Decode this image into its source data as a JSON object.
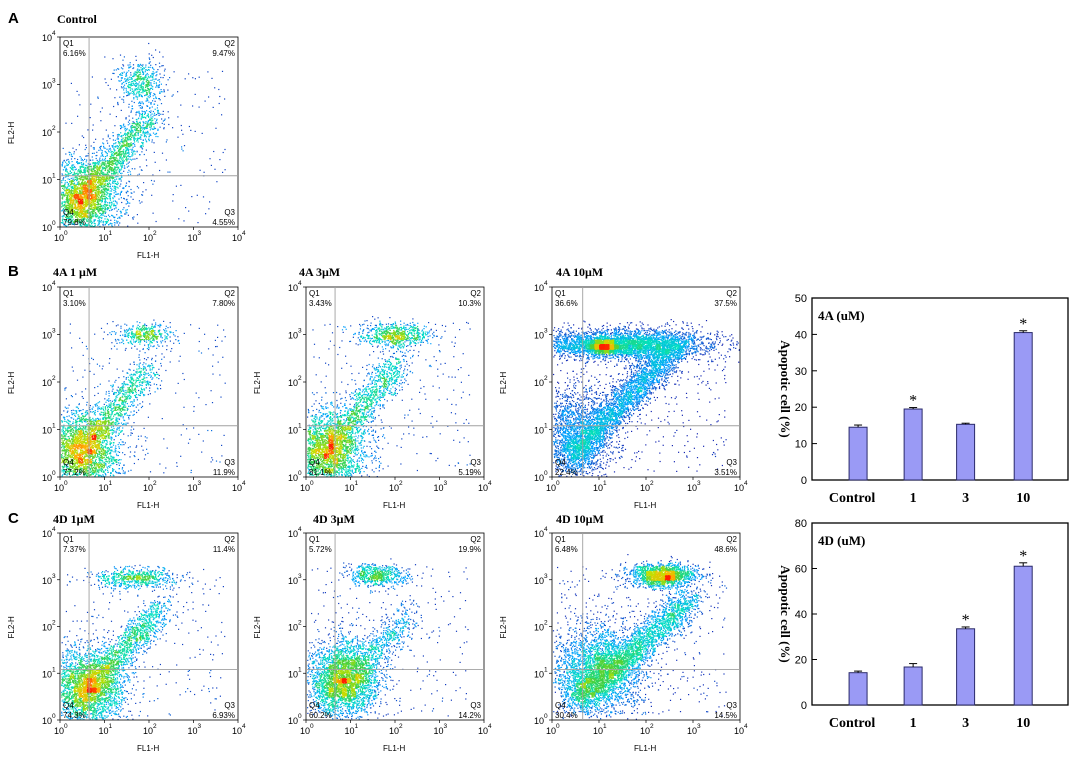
{
  "figure": {
    "panel_letters": [
      "A",
      "B",
      "C"
    ]
  },
  "colors": {
    "bar_fill": "#9a9af5",
    "bar_stroke": "#2a2a6a",
    "axis": "#000000",
    "gate_line": "#a0a0a0",
    "scatter_sparse": "#1a1aaa",
    "density_cmap": [
      "#1a1aaa",
      "#00a0ff",
      "#00e0c0",
      "#40d040",
      "#c0e000",
      "#ffb000",
      "#ff2000"
    ]
  },
  "chart_data": [
    {
      "type": "scatter",
      "id": "A_control",
      "panel": "A",
      "title": "Control",
      "xlabel": "FL1-H",
      "ylabel": "FL2-H",
      "axis_scale": "log",
      "xlim": [
        1,
        10000
      ],
      "ylim": [
        1,
        10000
      ],
      "tick_labels": [
        "10",
        "10",
        "10",
        "10",
        "10"
      ],
      "tick_exponents": [
        "0",
        "1",
        "2",
        "3",
        "4"
      ],
      "gate": [
        4.5,
        12
      ],
      "quadrants": [
        {
          "name": "Q1",
          "value": "6.16%"
        },
        {
          "name": "Q2",
          "value": "9.47%"
        },
        {
          "name": "Q3",
          "value": "4.55%"
        },
        {
          "name": "Q4",
          "value": "79.8%"
        }
      ],
      "populations": {
        "main": [
          3,
          4,
          0.45,
          0.45,
          2600
        ],
        "diag": [
          0.9,
          2.4,
          0.05,
          1500
        ],
        "upper": [
          1.8,
          3.05,
          0.25,
          0.25,
          500
        ],
        "side": 200
      }
    },
    {
      "type": "scatter",
      "id": "B_4A_1uM",
      "panel": "B",
      "title": "4A  1 μM",
      "xlabel": "FL1-H",
      "ylabel": "FL2-H",
      "axis_scale": "log",
      "xlim": [
        1,
        10000
      ],
      "ylim": [
        1,
        10000
      ],
      "tick_labels": [
        "10",
        "10",
        "10",
        "10",
        "10"
      ],
      "tick_exponents": [
        "0",
        "1",
        "2",
        "3",
        "4"
      ],
      "gate": [
        4.5,
        12
      ],
      "quadrants": [
        {
          "name": "Q1",
          "value": "3.10%"
        },
        {
          "name": "Q2",
          "value": "7.80%"
        },
        {
          "name": "Q3",
          "value": "11.9%"
        },
        {
          "name": "Q4",
          "value": "77.2%"
        }
      ],
      "populations": {
        "main": [
          3,
          3.5,
          0.45,
          0.45,
          2600
        ],
        "diag": [
          0.9,
          2.3,
          0.05,
          1100
        ],
        "upper": [
          1.9,
          3.0,
          0.3,
          0.12,
          400
        ],
        "side": 200
      }
    },
    {
      "type": "scatter",
      "id": "B_4A_3uM",
      "panel": "B",
      "title": "4A  3μM",
      "xlabel": "FL1-H",
      "ylabel": "FL2-H",
      "axis_scale": "log",
      "xlim": [
        1,
        10000
      ],
      "ylim": [
        1,
        10000
      ],
      "tick_labels": [
        "10",
        "10",
        "10",
        "10",
        "10"
      ],
      "tick_exponents": [
        "0",
        "1",
        "2",
        "3",
        "4"
      ],
      "gate": [
        4.5,
        12
      ],
      "quadrants": [
        {
          "name": "Q1",
          "value": "3.43%"
        },
        {
          "name": "Q2",
          "value": "10.3%"
        },
        {
          "name": "Q3",
          "value": "5.19%"
        },
        {
          "name": "Q4",
          "value": "81.1%"
        }
      ],
      "populations": {
        "main": [
          3,
          3.5,
          0.45,
          0.45,
          2600
        ],
        "diag": [
          0.9,
          2.4,
          0.05,
          1200
        ],
        "upper": [
          2.0,
          3.0,
          0.4,
          0.12,
          700
        ],
        "side": 250
      }
    },
    {
      "type": "scatter",
      "id": "B_4A_10uM",
      "panel": "B",
      "title": "4A  10μM",
      "xlabel": "FL1-H",
      "ylabel": "FL2-H",
      "axis_scale": "log",
      "xlim": [
        1,
        10000
      ],
      "ylim": [
        1,
        10000
      ],
      "tick_labels": [
        "10",
        "10",
        "10",
        "10",
        "10"
      ],
      "tick_exponents": [
        "0",
        "1",
        "2",
        "3",
        "4"
      ],
      "gate": [
        4.5,
        12
      ],
      "quadrants": [
        {
          "name": "Q1",
          "value": "36.6%"
        },
        {
          "name": "Q2",
          "value": "37.5%"
        },
        {
          "name": "Q3",
          "value": "3.51%"
        },
        {
          "name": "Q4",
          "value": "22.4%"
        }
      ],
      "populations": {
        "main": [
          3,
          8,
          0.4,
          0.5,
          1800
        ],
        "diag": [
          1.0,
          2.8,
          0.06,
          3200
        ],
        "upper": [
          1.5,
          2.8,
          0.9,
          0.15,
          3800
        ],
        "side": 400,
        "hot": [
          1.1,
          2.75,
          0.15,
          0.07,
          900
        ]
      }
    },
    {
      "type": "scatter",
      "id": "C_4D_1uM",
      "panel": "C",
      "title": "4D  1μM",
      "xlabel": "FL1-H",
      "ylabel": "FL2-H",
      "axis_scale": "log",
      "xlim": [
        1,
        10000
      ],
      "ylim": [
        1,
        10000
      ],
      "tick_labels": [
        "10",
        "10",
        "10",
        "10",
        "10"
      ],
      "tick_exponents": [
        "0",
        "1",
        "2",
        "3",
        "4"
      ],
      "gate": [
        4.5,
        12
      ],
      "quadrants": [
        {
          "name": "Q1",
          "value": "7.37%"
        },
        {
          "name": "Q2",
          "value": "11.4%"
        },
        {
          "name": "Q3",
          "value": "6.93%"
        },
        {
          "name": "Q4",
          "value": "74.3%"
        }
      ],
      "populations": {
        "main": [
          4,
          5,
          0.45,
          0.45,
          2600
        ],
        "diag": [
          1.0,
          2.4,
          0.05,
          1500
        ],
        "upper": [
          1.7,
          3.05,
          0.45,
          0.1,
          600
        ],
        "side": 250
      }
    },
    {
      "type": "scatter",
      "id": "C_4D_3uM",
      "panel": "C",
      "title": "4D  3μM",
      "xlabel": "FL1-H",
      "ylabel": "FL2-H",
      "axis_scale": "log",
      "xlim": [
        1,
        10000
      ],
      "ylim": [
        1,
        10000
      ],
      "tick_labels": [
        "10",
        "10",
        "10",
        "10",
        "10"
      ],
      "tick_exponents": [
        "0",
        "1",
        "2",
        "3",
        "4"
      ],
      "gate": [
        4.5,
        12
      ],
      "quadrants": [
        {
          "name": "Q1",
          "value": "5.72%"
        },
        {
          "name": "Q2",
          "value": "19.9%"
        },
        {
          "name": "Q3",
          "value": "14.2%"
        },
        {
          "name": "Q4",
          "value": "60.2%"
        }
      ],
      "populations": {
        "main": [
          7,
          8,
          0.4,
          0.4,
          2800
        ],
        "diag": [
          1.1,
          2.2,
          0.05,
          900
        ],
        "upper": [
          1.6,
          3.1,
          0.35,
          0.12,
          600
        ],
        "side": 250
      }
    },
    {
      "type": "scatter",
      "id": "C_4D_10uM",
      "panel": "C",
      "title": "4D 10μM",
      "xlabel": "FL1-H",
      "ylabel": "FL2-H",
      "axis_scale": "log",
      "xlim": [
        1,
        10000
      ],
      "ylim": [
        1,
        10000
      ],
      "tick_labels": [
        "10",
        "10",
        "10",
        "10",
        "10"
      ],
      "tick_exponents": [
        "0",
        "1",
        "2",
        "3",
        "4"
      ],
      "gate": [
        4.5,
        12
      ],
      "quadrants": [
        {
          "name": "Q1",
          "value": "6.48%"
        },
        {
          "name": "Q2",
          "value": "48.6%"
        },
        {
          "name": "Q3",
          "value": "14.5%"
        },
        {
          "name": "Q4",
          "value": "30.4%"
        }
      ],
      "populations": {
        "main": [
          9,
          11,
          0.5,
          0.5,
          2800
        ],
        "diag": [
          1.2,
          2.6,
          0.07,
          2600
        ],
        "upper": [
          2.35,
          3.1,
          0.35,
          0.12,
          1600
        ],
        "side": 350
      }
    },
    {
      "type": "bar",
      "id": "B_bar_4A",
      "panel": "B",
      "title": "4A (uM)",
      "categories": [
        "Control",
        "1",
        "3",
        "10"
      ],
      "values": [
        14.5,
        19.5,
        15.3,
        40.5
      ],
      "errors": [
        0.6,
        0.4,
        0.3,
        0.5
      ],
      "significant": [
        false,
        true,
        false,
        true
      ],
      "significance_mark": "*",
      "ylabel": "Apopotic cell (%)",
      "ylim": [
        0,
        50
      ],
      "yticks": [
        0,
        10,
        20,
        30,
        40,
        50
      ]
    },
    {
      "type": "bar",
      "id": "C_bar_4D",
      "panel": "C",
      "title": "4D (uM)",
      "categories": [
        "Control",
        "1",
        "3",
        "10"
      ],
      "values": [
        14.2,
        16.7,
        33.5,
        61.0
      ],
      "errors": [
        0.7,
        1.5,
        0.8,
        1.5
      ],
      "significant": [
        false,
        false,
        true,
        true
      ],
      "significance_mark": "*",
      "ylabel": "Apopotic cell (%)",
      "ylim": [
        0,
        80
      ],
      "yticks": [
        0,
        20,
        40,
        60,
        80
      ]
    }
  ]
}
